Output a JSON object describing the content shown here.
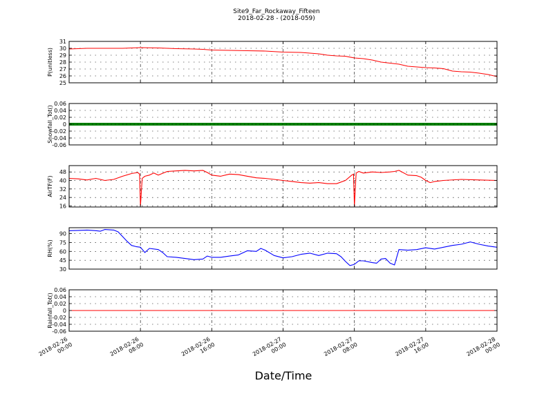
{
  "chart_data": {
    "type": "line",
    "title": "Site9_Far_Rockaway_Fifteen",
    "subtitle": "2018-02-28 - (2018-059)",
    "xlabel": "Date/Time",
    "x_ticks": [
      {
        "l1": "2018-02-26",
        "l2": "00:00"
      },
      {
        "l1": "2018-02-26",
        "l2": "08:00"
      },
      {
        "l1": "2018-02-26",
        "l2": "16:00"
      },
      {
        "l1": "2018-02-27",
        "l2": "00:00"
      },
      {
        "l1": "2018-02-27",
        "l2": "08:00"
      },
      {
        "l1": "2018-02-27",
        "l2": "16:00"
      },
      {
        "l1": "2018-02-28",
        "l2": "00:00"
      }
    ],
    "x_range_hours": [
      0,
      48
    ],
    "grid": true,
    "panels": [
      {
        "ylabel": "P(unitless)",
        "ylim": [
          25,
          31
        ],
        "yticks": [
          25,
          26,
          27,
          28,
          29,
          30,
          31
        ],
        "color": "#ff0000",
        "x_hours": [
          0,
          1,
          2,
          3,
          4,
          6,
          8,
          10,
          12,
          14,
          15,
          16,
          18,
          20,
          22,
          24,
          26,
          28,
          29,
          30,
          31,
          32,
          33,
          34,
          35,
          36,
          37,
          38,
          39,
          40,
          41,
          42,
          43,
          44,
          45,
          46,
          47,
          48
        ],
        "values": [
          29.9,
          29.95,
          30.0,
          30.0,
          30.0,
          30.0,
          30.1,
          30.05,
          29.95,
          29.9,
          29.85,
          29.75,
          29.7,
          29.65,
          29.6,
          29.45,
          29.4,
          29.2,
          29.0,
          28.9,
          28.85,
          28.6,
          28.5,
          28.3,
          28.0,
          27.85,
          27.7,
          27.4,
          27.3,
          27.2,
          27.15,
          27.05,
          26.7,
          26.6,
          26.55,
          26.4,
          26.2,
          25.9
        ]
      },
      {
        "ylabel": "Snowfall_Tot()",
        "ylim": [
          -0.06,
          0.06
        ],
        "yticks": [
          -0.06,
          -0.04,
          -0.02,
          0.0,
          0.02,
          0.04,
          0.06
        ],
        "color": "#008000",
        "x_hours": [
          0,
          48
        ],
        "values": [
          0.0,
          0.0
        ]
      },
      {
        "ylabel": "AirTF(F)",
        "ylim": [
          15,
          54
        ],
        "yticks": [
          16,
          24,
          32,
          40,
          48
        ],
        "color": "#ff0000",
        "x_hours": [
          0,
          1,
          2,
          3,
          4,
          5,
          6,
          7,
          7.7,
          7.9,
          8.0,
          8.2,
          8.5,
          9,
          9.5,
          10,
          11,
          12,
          13,
          14,
          15,
          15.5,
          16,
          17,
          18,
          19,
          20,
          21,
          22,
          23,
          24,
          25,
          26,
          27,
          28,
          29,
          30,
          31,
          31.7,
          31.9,
          32.0,
          32.2,
          32.5,
          33,
          34,
          35,
          36,
          36.5,
          37,
          38,
          39,
          39.5,
          40,
          40.5,
          41,
          42,
          44,
          46,
          48
        ],
        "values": [
          42,
          41.5,
          40.5,
          42,
          40,
          41,
          44,
          46.5,
          47.5,
          46,
          16,
          42,
          44,
          45,
          47,
          45,
          48.5,
          49,
          49.5,
          49,
          49.5,
          47.5,
          45,
          44,
          46,
          45.5,
          44,
          42.5,
          42,
          41,
          40,
          39,
          38,
          37.5,
          38,
          37,
          37,
          40,
          45,
          46,
          16,
          47,
          48.5,
          47,
          48,
          47.5,
          48,
          48.5,
          49.5,
          45,
          44.5,
          43,
          40,
          38,
          39,
          40,
          41,
          40.5,
          40
        ]
      },
      {
        "ylabel": "RH(%)",
        "ylim": [
          30,
          100
        ],
        "yticks": [
          30,
          45,
          60,
          75,
          90
        ],
        "color": "#0000ff",
        "x_hours": [
          0,
          1,
          2,
          3,
          3.5,
          4,
          5,
          5.5,
          6,
          6.5,
          7,
          7.5,
          8,
          8.5,
          9,
          10,
          10.5,
          11,
          12,
          13,
          14,
          15,
          15.5,
          16,
          17,
          18,
          19,
          20,
          21,
          21.5,
          22,
          23,
          24,
          25,
          26,
          27,
          28,
          29,
          30,
          30.5,
          31,
          31.5,
          32,
          32.5,
          33,
          34,
          34.5,
          35,
          35.5,
          36,
          36.5,
          37,
          38,
          39,
          40,
          41,
          42,
          43,
          44,
          45,
          46,
          47,
          48
        ],
        "values": [
          95,
          95.5,
          96,
          95,
          94,
          97,
          96,
          93,
          85,
          77,
          70,
          68,
          67,
          58,
          65,
          63,
          58,
          51,
          50,
          48,
          46,
          47,
          52,
          50,
          50,
          52,
          54,
          61,
          60,
          65,
          62,
          53,
          49,
          51,
          55,
          57,
          53,
          57,
          56,
          51,
          43,
          36,
          38,
          44,
          44,
          41,
          40,
          47,
          48,
          40,
          37,
          63,
          62,
          63,
          66,
          64,
          67,
          70,
          72,
          76,
          72,
          69,
          67
        ]
      },
      {
        "ylabel": "Rainfall_Tot()",
        "ylim": [
          -0.06,
          0.06
        ],
        "yticks": [
          -0.06,
          -0.04,
          -0.02,
          0.0,
          0.02,
          0.04,
          0.06
        ],
        "color": "#ff0000",
        "x_hours": [
          0,
          48
        ],
        "values": [
          0.0,
          0.0
        ]
      }
    ]
  }
}
